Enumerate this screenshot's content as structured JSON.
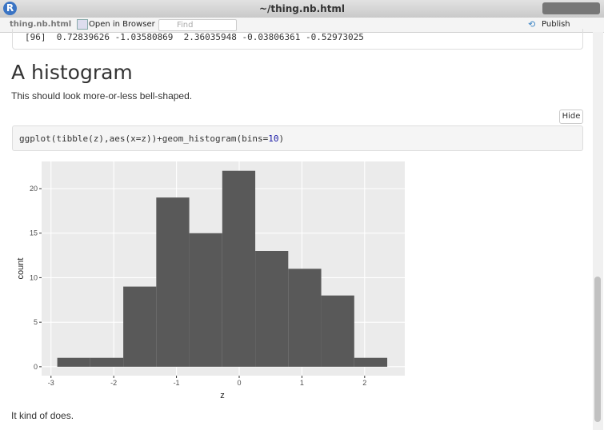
{
  "window": {
    "app_icon": "R",
    "title": "~/thing.nb.html"
  },
  "toolbar": {
    "file": "thing.nb.html",
    "open_button": "Open in Browser",
    "search_placeholder": "Find",
    "publish_button": "Publish"
  },
  "output": {
    "line": "[96]  0.72839626 -1.03580869  2.36035948 -0.03806361 -0.52973025"
  },
  "heading": "A histogram",
  "intro": "This should look more-or-less bell-shaped.",
  "hide_button": "Hide",
  "code": [
    "ggplot(tibble(z),aes(x=z))+geom_histogram(bins=",
    "10",
    ")"
  ],
  "chart_data": {
    "type": "histogram",
    "x_label": "z",
    "y_label": "count",
    "bins": [
      -2.9,
      -2.374,
      -1.848,
      -1.322,
      -0.796,
      -0.27,
      0.256,
      0.782,
      1.308,
      1.834,
      2.36
    ],
    "counts": [
      1,
      1,
      9,
      19,
      15,
      22,
      13,
      11,
      8,
      1
    ],
    "color": "#595959",
    "xlim": [
      -3.15,
      2.64
    ],
    "xticks": [
      -3,
      -2,
      -1,
      0,
      1,
      2
    ],
    "ylim": [
      -1,
      23.05
    ],
    "yticks": [
      0,
      5,
      10,
      15,
      20
    ],
    "grid": true
  },
  "closing": "It kind of does."
}
